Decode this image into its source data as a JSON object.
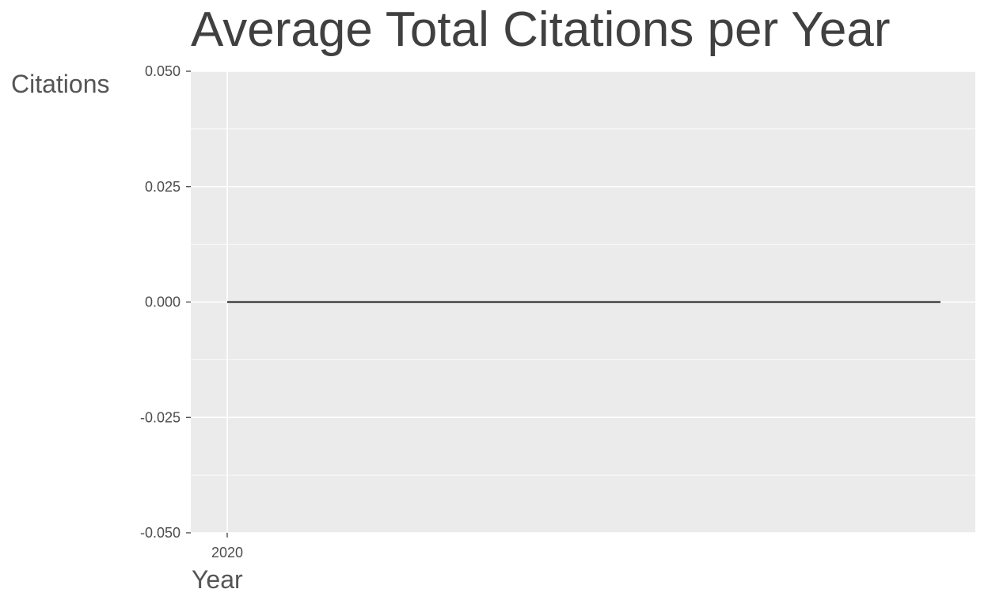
{
  "chart_data": {
    "type": "line",
    "title": "Average Total Citations per Year",
    "xlabel": "Year",
    "ylabel": "Citations",
    "x_ticks": [
      "2020"
    ],
    "y_ticks": [
      0.05,
      0.025,
      0,
      -0.025,
      -0.05
    ],
    "y_tick_labels": [
      "0.050",
      "0.025",
      "0.000",
      "-0.025",
      "-0.050"
    ],
    "ylim": [
      -0.05,
      0.05
    ],
    "grid": true,
    "series": [
      {
        "x": [
          2020,
          2020
        ],
        "values": [
          0,
          0
        ]
      }
    ],
    "colors": {
      "panel": "#EBEBEB",
      "grid": "#FFFFFF",
      "line": "#000000",
      "axis_text": "#4D4D4D"
    }
  }
}
